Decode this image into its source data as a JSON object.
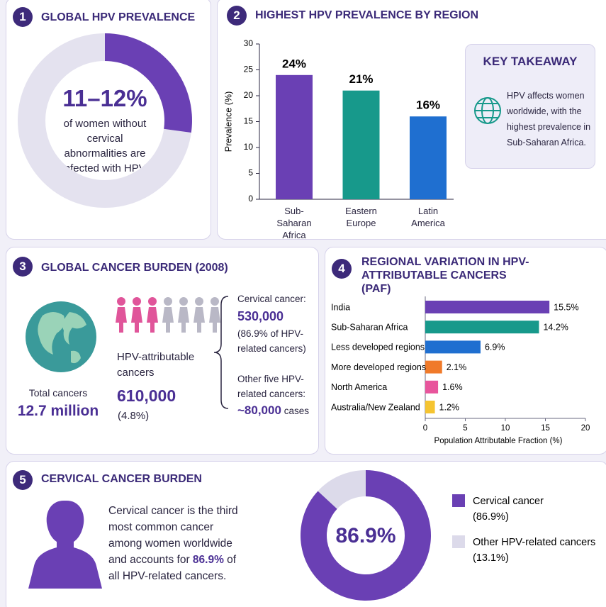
{
  "panel1": {
    "number": "1",
    "title": "GLOBAL HPV PREVALENCE",
    "headline": "11–12%",
    "text": "of women without cervical abnormalities are infected with HPV."
  },
  "panel2": {
    "number": "2",
    "title": "HIGHEST HPV PREVALENCE BY REGION",
    "key_takeaway": {
      "title": "KEY TAKEAWAY",
      "text": "HPV affects women worldwide, with the highest prevalence in Sub-Saharan Africa."
    }
  },
  "panel3": {
    "number": "3",
    "title": "GLOBAL CANCER BURDEN (2008)",
    "total_label": "Total cancers",
    "total_value": "12.7 million",
    "hpv_label": "HPV-attributable cancers",
    "hpv_value": "610,000",
    "hpv_share": "(4.8%)",
    "cervical_label": "Cervical cancer:",
    "cervical_value": "530,000",
    "cervical_note": "(86.9% of HPV-related cancers)",
    "other_label": "Other five HPV-related cancers:",
    "other_value": "~80,000",
    "other_unit": "cases"
  },
  "panel4": {
    "number": "4",
    "title": "REGIONAL VARIATION IN HPV-ATTRIBUTABLE CANCERS (PAF)"
  },
  "panel5": {
    "number": "5",
    "title": "CERVICAL CANCER BURDEN",
    "text_before": "Cervical cancer is the third most common cancer among women worldwide and accounts for ",
    "highlight": "86.9%",
    "text_after": " of all HPV-related cancers."
  },
  "chart_data": [
    {
      "type": "bar",
      "categories": [
        "Sub-Saharan Africa",
        "Eastern Europe",
        "Latin America"
      ],
      "values": [
        24,
        21,
        16
      ],
      "value_labels": [
        "24%",
        "21%",
        "16%"
      ],
      "colors": [
        "#6a40b4",
        "#17998b",
        "#1f6fd0"
      ],
      "ylabel": "Prevalence (%)",
      "ylim": [
        0,
        30
      ],
      "yticks": [
        0,
        5,
        10,
        15,
        20,
        25,
        30
      ]
    },
    {
      "type": "hbar",
      "categories": [
        "India",
        "Sub-Saharan Africa",
        "Less developed regions",
        "More developed regions",
        "North America",
        "Australia/New Zealand"
      ],
      "values": [
        15.5,
        14.2,
        6.9,
        2.1,
        1.6,
        1.2
      ],
      "value_labels": [
        "15.5%",
        "14.2%",
        "6.9%",
        "2.1%",
        "1.6%",
        "1.2%"
      ],
      "colors": [
        "#6a40b4",
        "#17998b",
        "#1f6fd0",
        "#f07a2a",
        "#e8559c",
        "#f5c431"
      ],
      "xlabel": "Population Attributable Fraction (%)",
      "xlim": [
        0,
        20
      ],
      "xticks": [
        0,
        5,
        10,
        15,
        20
      ]
    },
    {
      "type": "donut",
      "categories": [
        "Cervical cancer",
        "Other HPV-related cancers"
      ],
      "values": [
        86.9,
        13.1
      ],
      "value_labels": [
        "(86.9%)",
        "(13.1%)"
      ],
      "colors": [
        "#6a40b4",
        "#dcdaea"
      ],
      "center_label": "86.9%"
    }
  ]
}
